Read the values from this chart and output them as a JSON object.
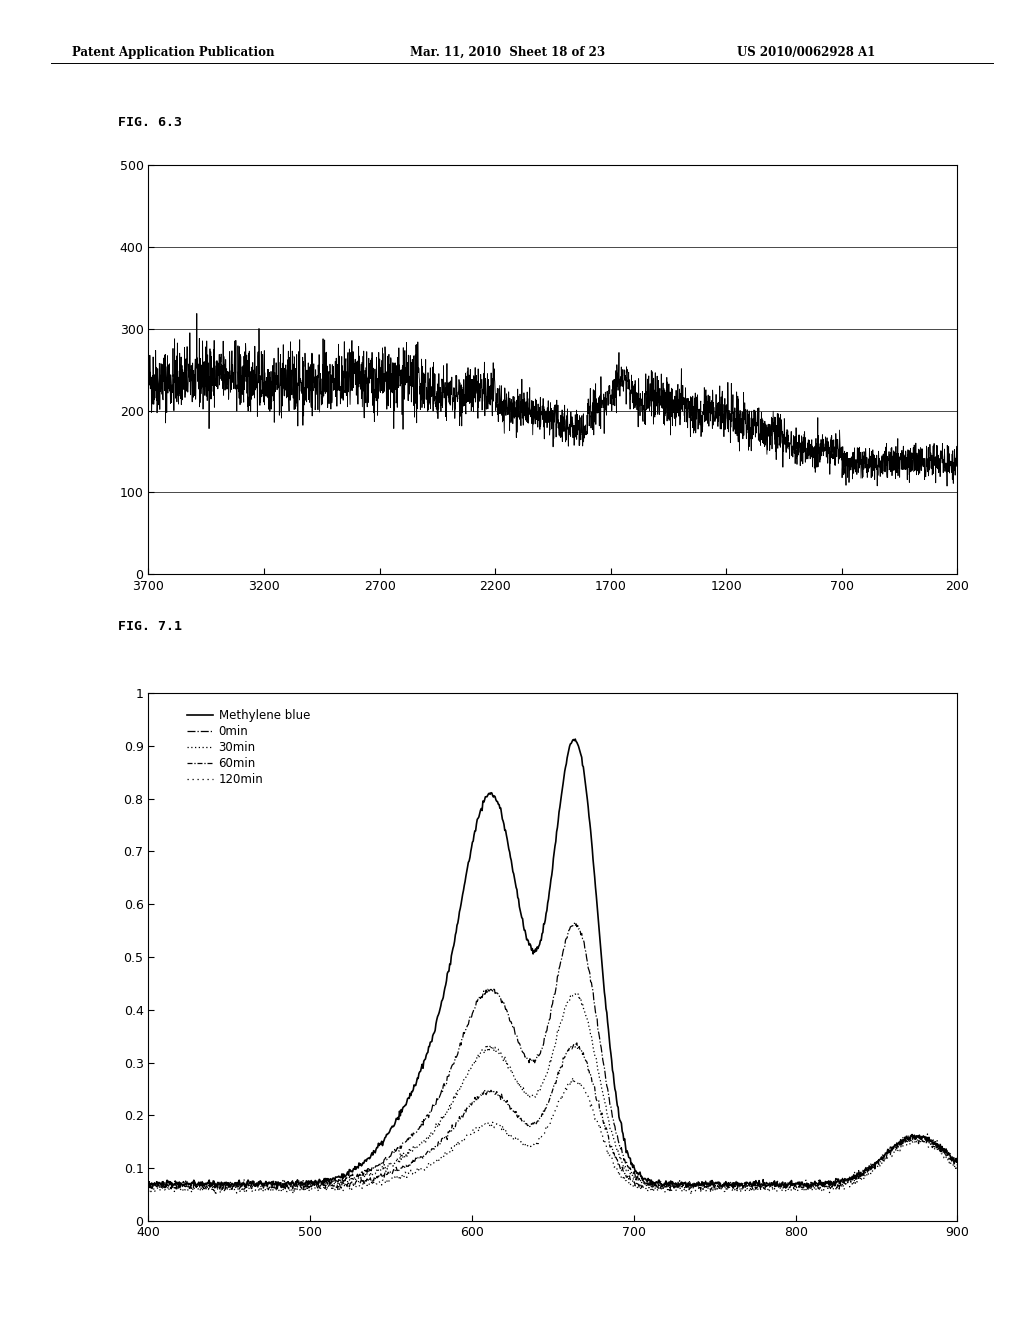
{
  "header_left": "Patent Application Publication",
  "header_mid": "Mar. 11, 2010  Sheet 18 of 23",
  "header_right": "US 2010/0062928 A1",
  "fig1_label": "FIG. 6.3",
  "fig2_label": "FIG. 7.1",
  "fig1": {
    "xlim": [
      3700,
      200
    ],
    "ylim": [
      0,
      500
    ],
    "xticks": [
      3700,
      3200,
      2700,
      2200,
      1700,
      1200,
      700,
      200
    ],
    "yticks": [
      0,
      100,
      200,
      300,
      400,
      500
    ]
  },
  "fig2": {
    "xlim": [
      400,
      900
    ],
    "ylim": [
      0,
      1
    ],
    "xticks": [
      400,
      500,
      600,
      700,
      800,
      900
    ],
    "yticks": [
      0,
      0.1,
      0.2,
      0.3,
      0.4,
      0.5,
      0.6,
      0.7,
      0.8,
      0.9,
      1
    ],
    "ytick_labels": [
      "0",
      "0.1",
      "0.2",
      "0.3",
      "0.4",
      "0.5",
      "0.6",
      "0.7",
      "0.8",
      "0.9",
      "1"
    ],
    "legend": [
      "Methylene blue",
      "0min",
      "30min",
      "60min",
      "120min"
    ]
  },
  "background_color": "#ffffff",
  "line_color": "#000000"
}
